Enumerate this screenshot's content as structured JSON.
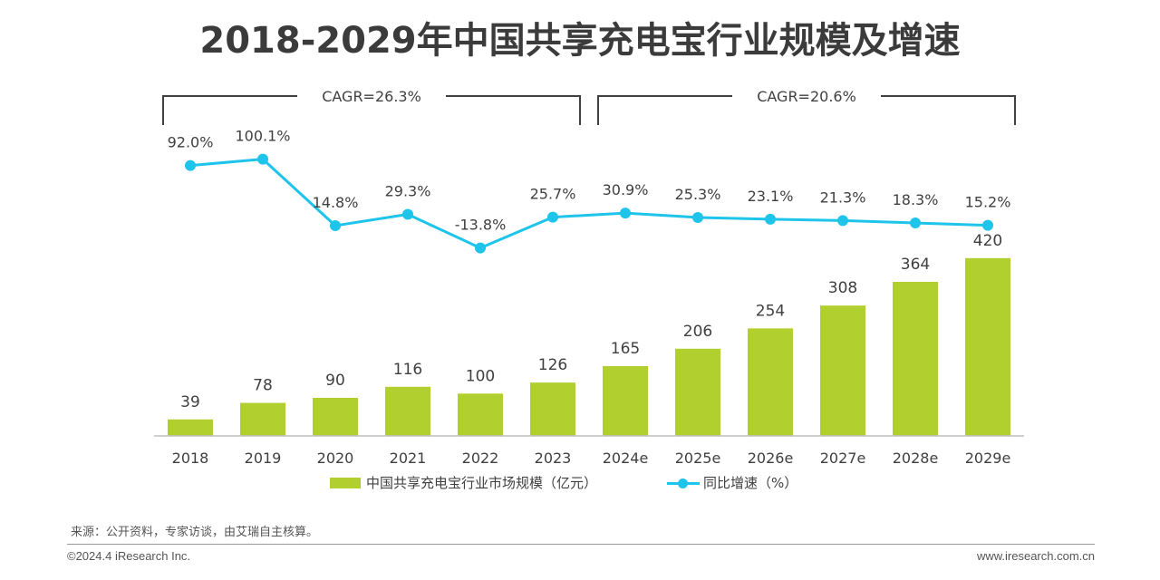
{
  "title": "2018-2029年中国共享充电宝行业规模及增速",
  "colors": {
    "bar": "#b1cf2f",
    "line": "#1ec4ea",
    "text": "#404040",
    "bracket": "#404040"
  },
  "chart_data": {
    "type": "bar",
    "categories": [
      "2018",
      "2019",
      "2020",
      "2021",
      "2022",
      "2023",
      "2024e",
      "2025e",
      "2026e",
      "2027e",
      "2028e",
      "2029e"
    ],
    "series": [
      {
        "name": "中国共享充电宝行业市场规模（亿元）",
        "type": "bar",
        "values": [
          39,
          78,
          90,
          116,
          100,
          126,
          165,
          206,
          254,
          308,
          364,
          420
        ]
      },
      {
        "name": "同比增速（%）",
        "type": "line",
        "values": [
          92.0,
          100.1,
          14.8,
          29.3,
          -13.8,
          25.7,
          30.9,
          25.3,
          23.1,
          21.3,
          18.3,
          15.2
        ],
        "labels": [
          "92.0%",
          "100.1%",
          "14.8%",
          "29.3%",
          "-13.8%",
          "25.7%",
          "30.9%",
          "25.3%",
          "23.1%",
          "21.3%",
          "18.3%",
          "15.2%"
        ]
      }
    ],
    "annotations": [
      {
        "text": "CAGR=26.3%",
        "from": "2018",
        "to": "2023"
      },
      {
        "text": "CAGR=20.6%",
        "from": "2024e",
        "to": "2029e"
      }
    ],
    "legend": "bottom",
    "grid": false
  },
  "source": "来源：公开资料，专家访谈，由艾瑞自主核算。",
  "copyright": "©2024.4 iResearch Inc.",
  "website": "www.iresearch.com.cn"
}
